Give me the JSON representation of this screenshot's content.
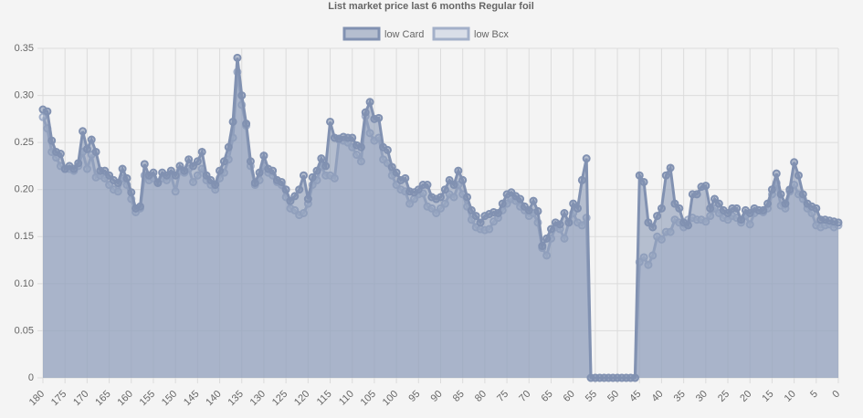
{
  "chart_data": {
    "type": "line",
    "title": "List market price last 6 months Regular foil",
    "x": [
      180,
      179,
      178,
      177,
      176,
      175,
      174,
      173,
      172,
      171,
      170,
      169,
      168,
      167,
      166,
      165,
      164,
      163,
      162,
      161,
      160,
      159,
      158,
      157,
      156,
      155,
      154,
      153,
      152,
      151,
      150,
      149,
      148,
      147,
      146,
      145,
      144,
      143,
      142,
      141,
      140,
      139,
      138,
      137,
      136,
      135,
      134,
      133,
      132,
      131,
      130,
      129,
      128,
      127,
      126,
      125,
      124,
      123,
      122,
      121,
      120,
      119,
      118,
      117,
      116,
      115,
      114,
      113,
      112,
      111,
      110,
      109,
      108,
      107,
      106,
      105,
      104,
      103,
      102,
      101,
      100,
      99,
      98,
      97,
      96,
      95,
      94,
      93,
      92,
      91,
      90,
      89,
      88,
      87,
      86,
      85,
      84,
      83,
      82,
      81,
      80,
      79,
      78,
      77,
      76,
      75,
      74,
      73,
      72,
      71,
      70,
      69,
      68,
      67,
      66,
      65,
      64,
      63,
      62,
      61,
      60,
      59,
      58,
      57,
      56,
      55,
      54,
      53,
      52,
      51,
      50,
      49,
      48,
      47,
      46,
      45,
      44,
      43,
      42,
      41,
      40,
      39,
      38,
      37,
      36,
      35,
      34,
      33,
      32,
      31,
      30,
      29,
      28,
      27,
      26,
      25,
      24,
      23,
      22,
      21,
      20,
      19,
      18,
      17,
      16,
      15,
      14,
      13,
      12,
      11,
      10,
      9,
      8,
      7,
      6,
      5,
      4,
      3,
      2,
      1,
      0
    ],
    "series": [
      {
        "name": "low Card",
        "color": "#8191b1",
        "fill": "rgba(129,145,177,0.55)",
        "values": [
          0.285,
          0.283,
          0.252,
          0.24,
          0.238,
          0.222,
          0.225,
          0.222,
          0.228,
          0.262,
          0.243,
          0.253,
          0.24,
          0.22,
          0.22,
          0.215,
          0.21,
          0.207,
          0.222,
          0.212,
          0.197,
          0.18,
          0.182,
          0.227,
          0.215,
          0.218,
          0.207,
          0.218,
          0.215,
          0.22,
          0.215,
          0.225,
          0.22,
          0.232,
          0.225,
          0.23,
          0.24,
          0.215,
          0.21,
          0.205,
          0.22,
          0.23,
          0.245,
          0.272,
          0.34,
          0.3,
          0.27,
          0.23,
          0.207,
          0.218,
          0.236,
          0.222,
          0.22,
          0.21,
          0.208,
          0.2,
          0.188,
          0.193,
          0.2,
          0.215,
          0.19,
          0.213,
          0.22,
          0.233,
          0.225,
          0.272,
          0.255,
          0.254,
          0.256,
          0.255,
          0.255,
          0.247,
          0.245,
          0.282,
          0.293,
          0.275,
          0.276,
          0.245,
          0.242,
          0.224,
          0.218,
          0.21,
          0.212,
          0.198,
          0.197,
          0.2,
          0.205,
          0.205,
          0.192,
          0.19,
          0.192,
          0.2,
          0.21,
          0.205,
          0.22,
          0.21,
          0.192,
          0.178,
          0.172,
          0.165,
          0.172,
          0.174,
          0.176,
          0.175,
          0.185,
          0.195,
          0.197,
          0.193,
          0.19,
          0.182,
          0.178,
          0.188,
          0.177,
          0.14,
          0.148,
          0.158,
          0.165,
          0.163,
          0.175,
          0.165,
          0.185,
          0.18,
          0.21,
          0.233,
          0,
          0,
          0,
          0,
          0,
          0,
          0,
          0,
          0,
          0,
          0,
          0.215,
          0.208,
          0.165,
          0.16,
          0.172,
          0.18,
          0.215,
          0.223,
          0.185,
          0.18,
          0.165,
          0.162,
          0.195,
          0.195,
          0.203,
          0.204,
          0.18,
          0.19,
          0.185,
          0.178,
          0.175,
          0.18,
          0.18,
          0.168,
          0.178,
          0.175,
          0.18,
          0.178,
          0.178,
          0.185,
          0.2,
          0.217,
          0.195,
          0.185,
          0.2,
          0.229,
          0.215,
          0.195,
          0.185,
          0.182,
          0.18,
          0.168,
          0.168,
          0.167,
          0.166,
          0.165
        ]
      },
      {
        "name": "low Bcx",
        "color": "#a3b0c9",
        "fill": "rgba(190,200,220,0.5)",
        "values": [
          0.277,
          0.265,
          0.24,
          0.234,
          0.225,
          0.222,
          0.222,
          0.22,
          0.225,
          0.24,
          0.222,
          0.237,
          0.213,
          0.215,
          0.212,
          0.205,
          0.2,
          0.198,
          0.212,
          0.205,
          0.19,
          0.176,
          0.18,
          0.215,
          0.21,
          0.212,
          0.208,
          0.212,
          0.21,
          0.215,
          0.198,
          0.22,
          0.218,
          0.222,
          0.208,
          0.215,
          0.222,
          0.21,
          0.205,
          0.2,
          0.212,
          0.218,
          0.232,
          0.255,
          0.325,
          0.29,
          0.268,
          0.225,
          0.205,
          0.21,
          0.225,
          0.218,
          0.215,
          0.208,
          0.205,
          0.192,
          0.18,
          0.178,
          0.173,
          0.175,
          0.185,
          0.205,
          0.21,
          0.225,
          0.215,
          0.215,
          0.212,
          0.253,
          0.252,
          0.25,
          0.245,
          0.237,
          0.23,
          0.278,
          0.26,
          0.252,
          0.255,
          0.232,
          0.228,
          0.215,
          0.205,
          0.2,
          0.198,
          0.185,
          0.19,
          0.195,
          0.196,
          0.182,
          0.18,
          0.175,
          0.18,
          0.185,
          0.195,
          0.192,
          0.205,
          0.195,
          0.182,
          0.168,
          0.16,
          0.158,
          0.157,
          0.158,
          0.166,
          0.17,
          0.178,
          0.185,
          0.19,
          0.188,
          0.182,
          0.178,
          0.172,
          0.175,
          0.165,
          0.138,
          0.13,
          0.148,
          0.16,
          0.158,
          0.148,
          0.165,
          0.175,
          0.165,
          0.162,
          0.17,
          0,
          0,
          0,
          0,
          0,
          0,
          0,
          0,
          0,
          0,
          0,
          0.123,
          0.128,
          0.12,
          0.13,
          0.15,
          0.147,
          0.155,
          0.155,
          0.168,
          0.165,
          0.16,
          0.168,
          0.17,
          0.168,
          0.168,
          0.166,
          0.172,
          0.18,
          0.175,
          0.17,
          0.168,
          0.172,
          0.17,
          0.165,
          0.172,
          0.163,
          0.175,
          0.178,
          0.176,
          0.18,
          0.195,
          0.207,
          0.183,
          0.18,
          0.198,
          0.205,
          0.195,
          0.19,
          0.18,
          0.175,
          0.162,
          0.16,
          0.162,
          0.163,
          0.16,
          0.162
        ]
      }
    ],
    "xlim": [
      180,
      0
    ],
    "xticks": [
      180,
      175,
      170,
      165,
      160,
      155,
      150,
      145,
      140,
      135,
      130,
      125,
      120,
      115,
      110,
      105,
      100,
      95,
      90,
      85,
      80,
      75,
      70,
      65,
      60,
      55,
      50,
      45,
      40,
      35,
      30,
      25,
      20,
      15,
      10,
      5,
      0
    ],
    "ylim": [
      0,
      0.35
    ],
    "yticks": [
      0,
      0.05,
      {
        "value": 0.1,
        "label": "0.10"
      },
      0.15,
      {
        "value": 0.2,
        "label": "0.20"
      },
      0.25,
      {
        "value": 0.3,
        "label": "0.30"
      },
      0.35
    ],
    "grid": true,
    "legend": "top"
  }
}
